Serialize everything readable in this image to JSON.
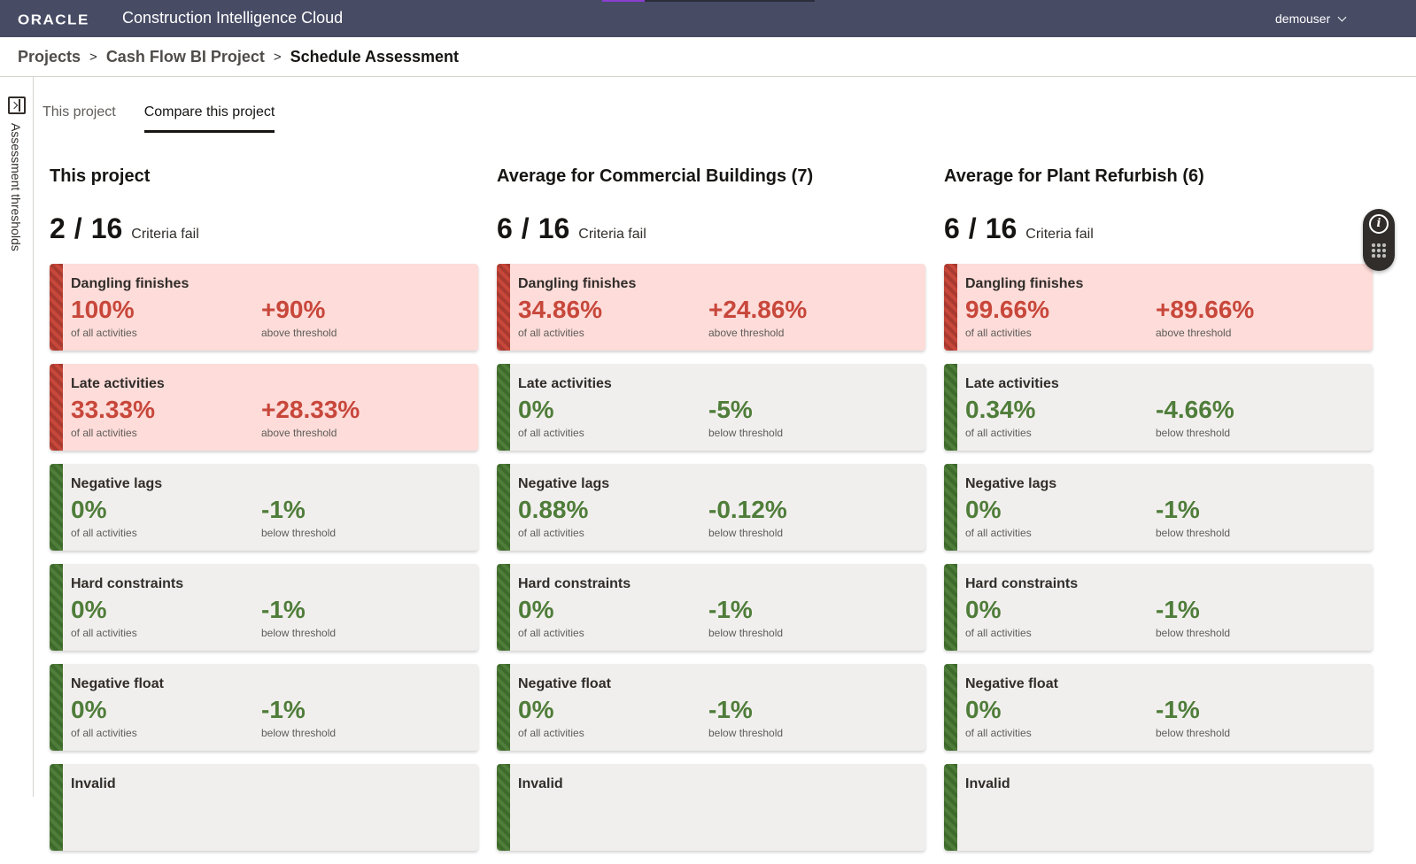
{
  "header": {
    "logo": "ORACLE",
    "app_title": "Construction Intelligence Cloud",
    "user": "demouser"
  },
  "breadcrumb": {
    "items": [
      "Projects",
      "Cash Flow BI Project"
    ],
    "separator": ">",
    "current": "Schedule Assessment"
  },
  "rail": {
    "label": "Assessment thresholds"
  },
  "tabs": [
    {
      "label": "This project"
    },
    {
      "label": "Compare this project"
    }
  ],
  "columns": [
    {
      "title": "This project",
      "fails": "2",
      "slash": "/",
      "total": "16",
      "fail_text": "Criteria fail",
      "cards": [
        {
          "name": "Dangling finishes",
          "value": "100%",
          "value_sub": "of all activities",
          "delta": "+90%",
          "delta_sub": "above threshold"
        },
        {
          "name": "Late activities",
          "value": "33.33%",
          "value_sub": "of all activities",
          "delta": "+28.33%",
          "delta_sub": "above threshold"
        },
        {
          "name": "Negative lags",
          "value": "0%",
          "value_sub": "of all activities",
          "delta": "-1%",
          "delta_sub": "below threshold"
        },
        {
          "name": "Hard constraints",
          "value": "0%",
          "value_sub": "of all activities",
          "delta": "-1%",
          "delta_sub": "below threshold"
        },
        {
          "name": "Negative float",
          "value": "0%",
          "value_sub": "of all activities",
          "delta": "-1%",
          "delta_sub": "below threshold"
        },
        {
          "name": "Invalid",
          "value": "",
          "value_sub": "",
          "delta": "",
          "delta_sub": ""
        }
      ]
    },
    {
      "title": "Average for Commercial Buildings (7)",
      "fails": "6",
      "slash": "/",
      "total": "16",
      "fail_text": "Criteria fail",
      "cards": [
        {
          "name": "Dangling finishes",
          "value": "34.86%",
          "value_sub": "of all activities",
          "delta": "+24.86%",
          "delta_sub": "above threshold"
        },
        {
          "name": "Late activities",
          "value": "0%",
          "value_sub": "of all activities",
          "delta": "-5%",
          "delta_sub": "below threshold"
        },
        {
          "name": "Negative lags",
          "value": "0.88%",
          "value_sub": "of all activities",
          "delta": "-0.12%",
          "delta_sub": "below threshold"
        },
        {
          "name": "Hard constraints",
          "value": "0%",
          "value_sub": "of all activities",
          "delta": "-1%",
          "delta_sub": "below threshold"
        },
        {
          "name": "Negative float",
          "value": "0%",
          "value_sub": "of all activities",
          "delta": "-1%",
          "delta_sub": "below threshold"
        },
        {
          "name": "Invalid",
          "value": "",
          "value_sub": "",
          "delta": "",
          "delta_sub": ""
        }
      ]
    },
    {
      "title": "Average for Plant Refurbish (6)",
      "fails": "6",
      "slash": "/",
      "total": "16",
      "fail_text": "Criteria fail",
      "cards": [
        {
          "name": "Dangling finishes",
          "value": "99.66%",
          "value_sub": "of all activities",
          "delta": "+89.66%",
          "delta_sub": "above threshold"
        },
        {
          "name": "Late activities",
          "value": "0.34%",
          "value_sub": "of all activities",
          "delta": "-4.66%",
          "delta_sub": "below threshold"
        },
        {
          "name": "Negative lags",
          "value": "0%",
          "value_sub": "of all activities",
          "delta": "-1%",
          "delta_sub": "below threshold"
        },
        {
          "name": "Hard constraints",
          "value": "0%",
          "value_sub": "of all activities",
          "delta": "-1%",
          "delta_sub": "below threshold"
        },
        {
          "name": "Negative float",
          "value": "0%",
          "value_sub": "of all activities",
          "delta": "-1%",
          "delta_sub": "below threshold"
        },
        {
          "name": "Invalid",
          "value": "",
          "value_sub": "",
          "delta": "",
          "delta_sub": ""
        }
      ]
    }
  ],
  "help_widget": {
    "info_glyph": "i"
  },
  "colors": {
    "header_bg": "#474b64",
    "fail": "#c8473b",
    "pass": "#4f7d3a",
    "fail_card_bg": "#fddcd9",
    "pass_card_bg": "#f1efed"
  }
}
